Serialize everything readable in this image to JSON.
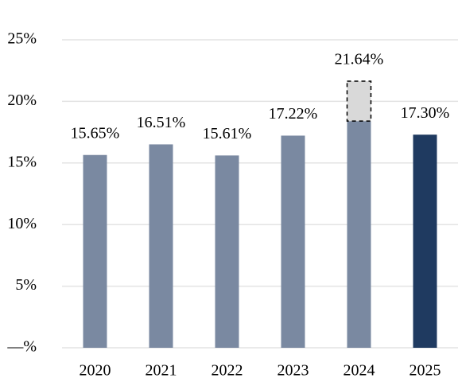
{
  "chart_data": {
    "type": "bar",
    "categories": [
      "2020",
      "2021",
      "2022",
      "2023",
      "2024",
      "2025"
    ],
    "values": [
      15.65,
      16.51,
      15.61,
      17.22,
      21.64,
      17.3
    ],
    "value_labels": [
      "15.65%",
      "16.51%",
      "15.61%",
      "17.22%",
      "21.64%",
      "17.30%"
    ],
    "colors": [
      "#7a89a1",
      "#7a89a1",
      "#7a89a1",
      "#7a89a1",
      "#7a89a1",
      "#1f3a60"
    ],
    "split": {
      "index": 4,
      "value": 18.4,
      "color": "#d9d9d9"
    },
    "ylim": [
      0,
      25
    ],
    "yticks": [
      {
        "value": 0,
        "label": "—%"
      },
      {
        "value": 5,
        "label": "5%"
      },
      {
        "value": 10,
        "label": "10%"
      },
      {
        "value": 15,
        "label": "15%"
      },
      {
        "value": 20,
        "label": "20%"
      },
      {
        "value": 25,
        "label": "25%"
      }
    ],
    "grid": true
  }
}
